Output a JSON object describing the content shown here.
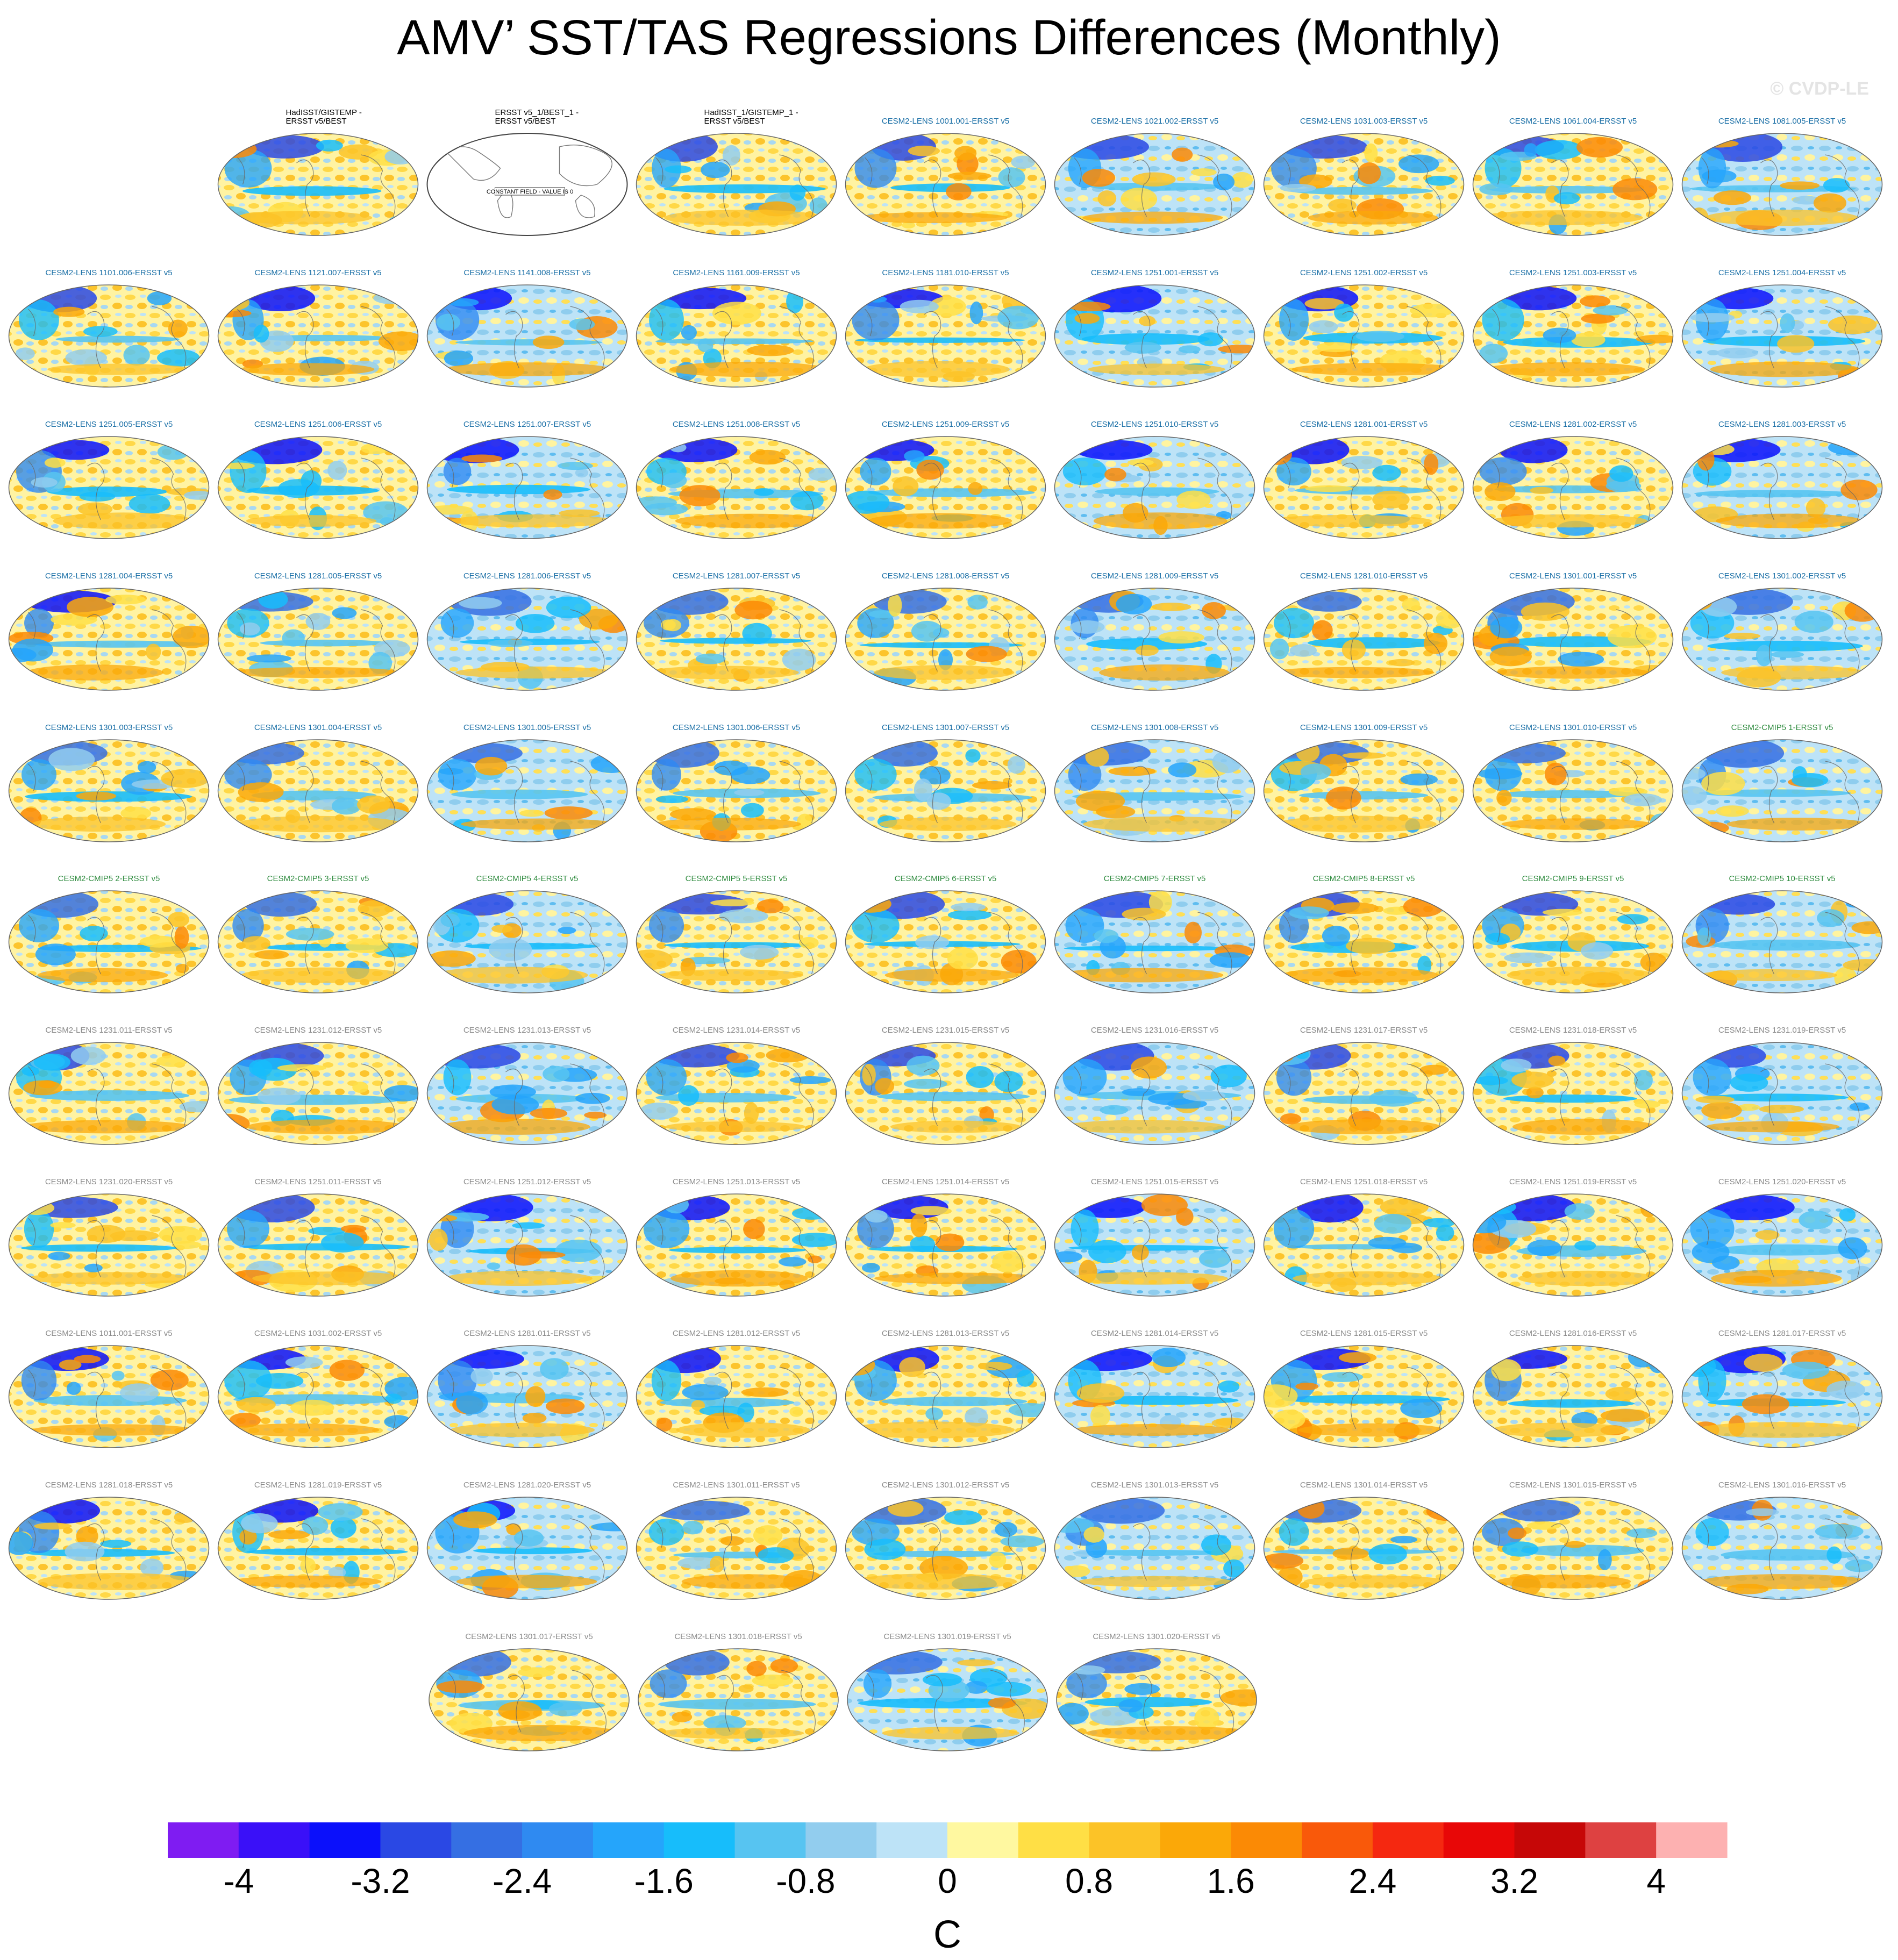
{
  "title": "AMV’ SST/TAS Regressions Differences (Monthly)",
  "watermark": "© CVDP-LE",
  "colorbar": {
    "colors": [
      "#7f1cf2",
      "#3a10f8",
      "#0b10fb",
      "#2a48e4",
      "#356fe3",
      "#2f8af1",
      "#25a5fb",
      "#17bdfb",
      "#57c4f1",
      "#92cdee",
      "#bde3f7",
      "#fff8a0",
      "#ffdf45",
      "#fcc327",
      "#fba808",
      "#fb8a05",
      "#f9590a",
      "#f52810",
      "#e80707",
      "#c60707",
      "#de4141",
      "#fdb1b1"
    ],
    "tick_labels": [
      "-4",
      "-3.2",
      "-2.4",
      "-1.6",
      "-0.8",
      "0",
      "0.8",
      "1.6",
      "2.4",
      "3.2",
      "4"
    ],
    "units": "C"
  },
  "chart_data": {
    "type": "heatmap",
    "title": "AMV’ SST/TAS Regressions Differences (Monthly)",
    "units": "C",
    "levels": [
      -4.4,
      -4,
      -3.6,
      -3.2,
      -2.8,
      -2.4,
      -2,
      -1.6,
      -1.2,
      -0.8,
      -0.4,
      0,
      0.4,
      0.8,
      1.2,
      1.6,
      2,
      2.4,
      2.8,
      3.2,
      3.6,
      4,
      4.4
    ],
    "observational_panels": [
      {
        "title": "HadISST/GISTEMP -\nERSST v5/BEST",
        "constant": false
      },
      {
        "title": "ERSST v5_1/BEST_1 -\nERSST v5/BEST",
        "constant": true,
        "annotation": "CONSTANT FIELD - VALUE IS 0"
      },
      {
        "title": "HadISST_1/GISTEMP_1 -\nERSST v5/BEST",
        "constant": false
      }
    ],
    "member_panels": [
      "CESM2-LENS 1001.001-ERSST v5",
      "CESM2-LENS 1021.002-ERSST v5",
      "CESM2-LENS 1031.003-ERSST v5",
      "CESM2-LENS 1061.004-ERSST v5",
      "CESM2-LENS 1081.005-ERSST v5",
      "CESM2-LENS 1101.006-ERSST v5",
      "CESM2-LENS 1121.007-ERSST v5",
      "CESM2-LENS 1141.008-ERSST v5",
      "CESM2-LENS 1161.009-ERSST v5",
      "CESM2-LENS 1181.010-ERSST v5",
      "CESM2-LENS 1251.001-ERSST v5",
      "CESM2-LENS 1251.002-ERSST v5",
      "CESM2-LENS 1251.003-ERSST v5",
      "CESM2-LENS 1251.004-ERSST v5",
      "CESM2-LENS 1251.005-ERSST v5",
      "CESM2-LENS 1251.006-ERSST v5",
      "CESM2-LENS 1251.007-ERSST v5",
      "CESM2-LENS 1251.008-ERSST v5",
      "CESM2-LENS 1251.009-ERSST v5",
      "CESM2-LENS 1251.010-ERSST v5",
      "CESM2-LENS 1281.001-ERSST v5",
      "CESM2-LENS 1281.002-ERSST v5",
      "CESM2-LENS 1281.003-ERSST v5",
      "CESM2-LENS 1281.004-ERSST v5",
      "CESM2-LENS 1281.005-ERSST v5",
      "CESM2-LENS 1281.006-ERSST v5",
      "CESM2-LENS 1281.007-ERSST v5",
      "CESM2-LENS 1281.008-ERSST v5",
      "CESM2-LENS 1281.009-ERSST v5",
      "CESM2-LENS 1281.010-ERSST v5",
      "CESM2-LENS 1301.001-ERSST v5",
      "CESM2-LENS 1301.002-ERSST v5",
      "CESM2-LENS 1301.003-ERSST v5",
      "CESM2-LENS 1301.004-ERSST v5",
      "CESM2-LENS 1301.005-ERSST v5",
      "CESM2-LENS 1301.006-ERSST v5",
      "CESM2-LENS 1301.007-ERSST v5",
      "CESM2-LENS 1301.008-ERSST v5",
      "CESM2-LENS 1301.009-ERSST v5",
      "CESM2-LENS 1301.010-ERSST v5",
      "CESM2-CMIP5 1-ERSST v5",
      "CESM2-CMIP5 2-ERSST v5",
      "CESM2-CMIP5 3-ERSST v5",
      "CESM2-CMIP5 4-ERSST v5",
      "CESM2-CMIP5 5-ERSST v5",
      "CESM2-CMIP5 6-ERSST v5",
      "CESM2-CMIP5 7-ERSST v5",
      "CESM2-CMIP5 8-ERSST v5",
      "CESM2-CMIP5 9-ERSST v5",
      "CESM2-CMIP5 10-ERSST v5",
      "CESM2-LENS 1231.011-ERSST v5",
      "CESM2-LENS 1231.012-ERSST v5",
      "CESM2-LENS 1231.013-ERSST v5",
      "CESM2-LENS 1231.014-ERSST v5",
      "CESM2-LENS 1231.015-ERSST v5",
      "CESM2-LENS 1231.016-ERSST v5",
      "CESM2-LENS 1231.017-ERSST v5",
      "CESM2-LENS 1231.018-ERSST v5",
      "CESM2-LENS 1231.019-ERSST v5",
      "CESM2-LENS 1231.020-ERSST v5",
      "CESM2-LENS 1251.011-ERSST v5",
      "CESM2-LENS 1251.012-ERSST v5",
      "CESM2-LENS 1251.013-ERSST v5",
      "CESM2-LENS 1251.014-ERSST v5",
      "CESM2-LENS 1251.015-ERSST v5",
      "CESM2-LENS 1251.018-ERSST v5",
      "CESM2-LENS 1251.019-ERSST v5",
      "CESM2-LENS 1251.020-ERSST v5",
      "CESM2-LENS 1011.001-ERSST v5",
      "CESM2-LENS 1031.002-ERSST v5",
      "CESM2-LENS 1281.011-ERSST v5",
      "CESM2-LENS 1281.012-ERSST v5",
      "CESM2-LENS 1281.013-ERSST v5",
      "CESM2-LENS 1281.014-ERSST v5",
      "CESM2-LENS 1281.015-ERSST v5",
      "CESM2-LENS 1281.016-ERSST v5",
      "CESM2-LENS 1281.017-ERSST v5",
      "CESM2-LENS 1281.018-ERSST v5",
      "CESM2-LENS 1281.019-ERSST v5",
      "CESM2-LENS 1281.020-ERSST v5",
      "CESM2-LENS 1301.011-ERSST v5",
      "CESM2-LENS 1301.012-ERSST v5",
      "CESM2-LENS 1301.013-ERSST v5",
      "CESM2-LENS 1301.014-ERSST v5",
      "CESM2-LENS 1301.015-ERSST v5",
      "CESM2-LENS 1301.016-ERSST v5",
      "CESM2-LENS 1301.017-ERSST v5",
      "CESM2-LENS 1301.018-ERSST v5",
      "CESM2-LENS 1301.019-ERSST v5",
      "CESM2-LENS 1301.020-ERSST v5"
    ],
    "title_colors": {
      "observations": "#000000",
      "cesm2_lens_first": "#1a6fa6",
      "cesm2_cmip5": "#2e8b3e",
      "cesm2_lens_second": "#8a8a8a"
    }
  }
}
